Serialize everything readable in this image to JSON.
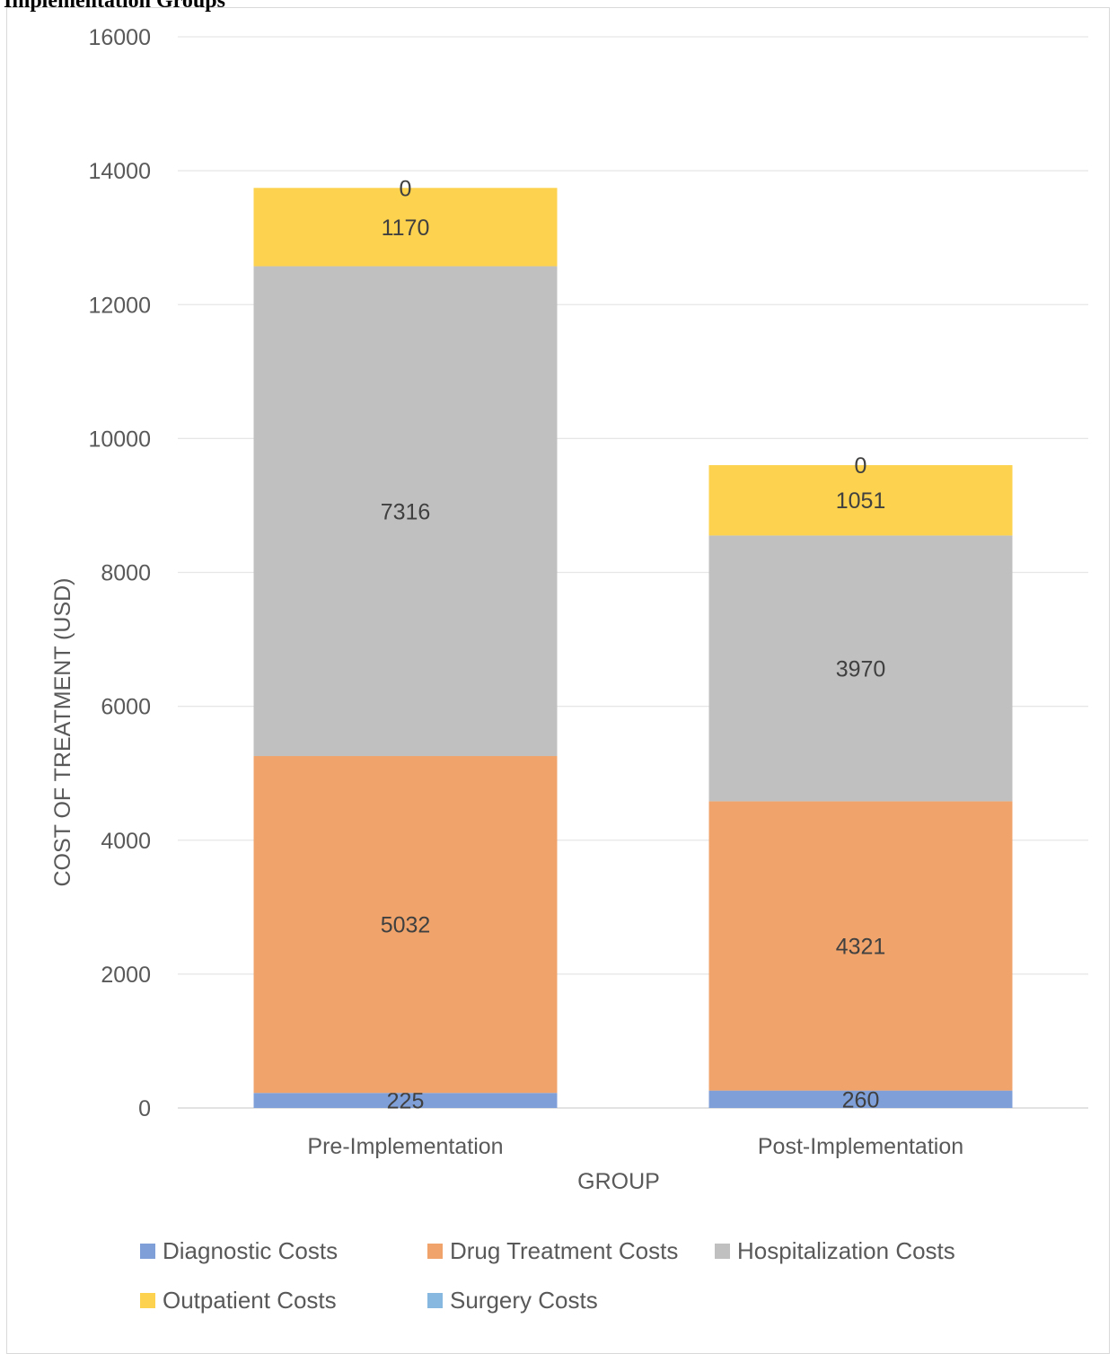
{
  "caption": "Implementation Groups",
  "chart_data": {
    "type": "bar",
    "stacked": true,
    "title": "",
    "xlabel": "GROUP",
    "ylabel": "COST OF TREATMENT (USD)",
    "categories": [
      "Pre-Implementation",
      "Post-Implementation"
    ],
    "ylim": [
      0,
      16000
    ],
    "yticks": [
      0,
      2000,
      4000,
      6000,
      8000,
      10000,
      12000,
      14000,
      16000
    ],
    "grid": true,
    "legend_position": "bottom",
    "series": [
      {
        "name": "Diagnostic Costs",
        "values": [
          225,
          260
        ],
        "color": "#7f9fd8"
      },
      {
        "name": "Drug Treatment Costs",
        "values": [
          5032,
          4321
        ],
        "color": "#f0a46c"
      },
      {
        "name": "Hospitalization Costs",
        "values": [
          7316,
          3970
        ],
        "color": "#c0c0c0"
      },
      {
        "name": "Outpatient Costs",
        "values": [
          1170,
          1051
        ],
        "color": "#fcd24e"
      },
      {
        "name": "Surgery Costs",
        "values": [
          0,
          0
        ],
        "color": "#86b8e0"
      }
    ]
  }
}
